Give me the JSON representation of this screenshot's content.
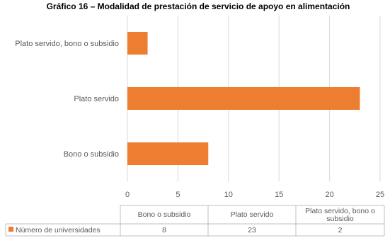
{
  "chart_data": {
    "type": "bar",
    "orientation": "horizontal",
    "title": "Gráfico 16 – Modalidad de prestación de servicio de apoyo en alimentación",
    "categories": [
      "Bono o subsidio",
      "Plato servido",
      "Plato servido, bono o subsidio"
    ],
    "series": [
      {
        "name": "Número de universidades",
        "values": [
          8,
          23,
          2
        ],
        "color": "#ED7D31"
      }
    ],
    "xlim": [
      0,
      25
    ],
    "xticks": [
      0,
      5,
      10,
      15,
      20,
      25
    ],
    "grid": true,
    "data_table": {
      "headers": [
        "Bono o subsidio",
        "Plato servido",
        "Plato servido, bono o subsidio"
      ],
      "row_label": "Número de universidades",
      "values": [
        "8",
        "23",
        "2"
      ]
    }
  }
}
